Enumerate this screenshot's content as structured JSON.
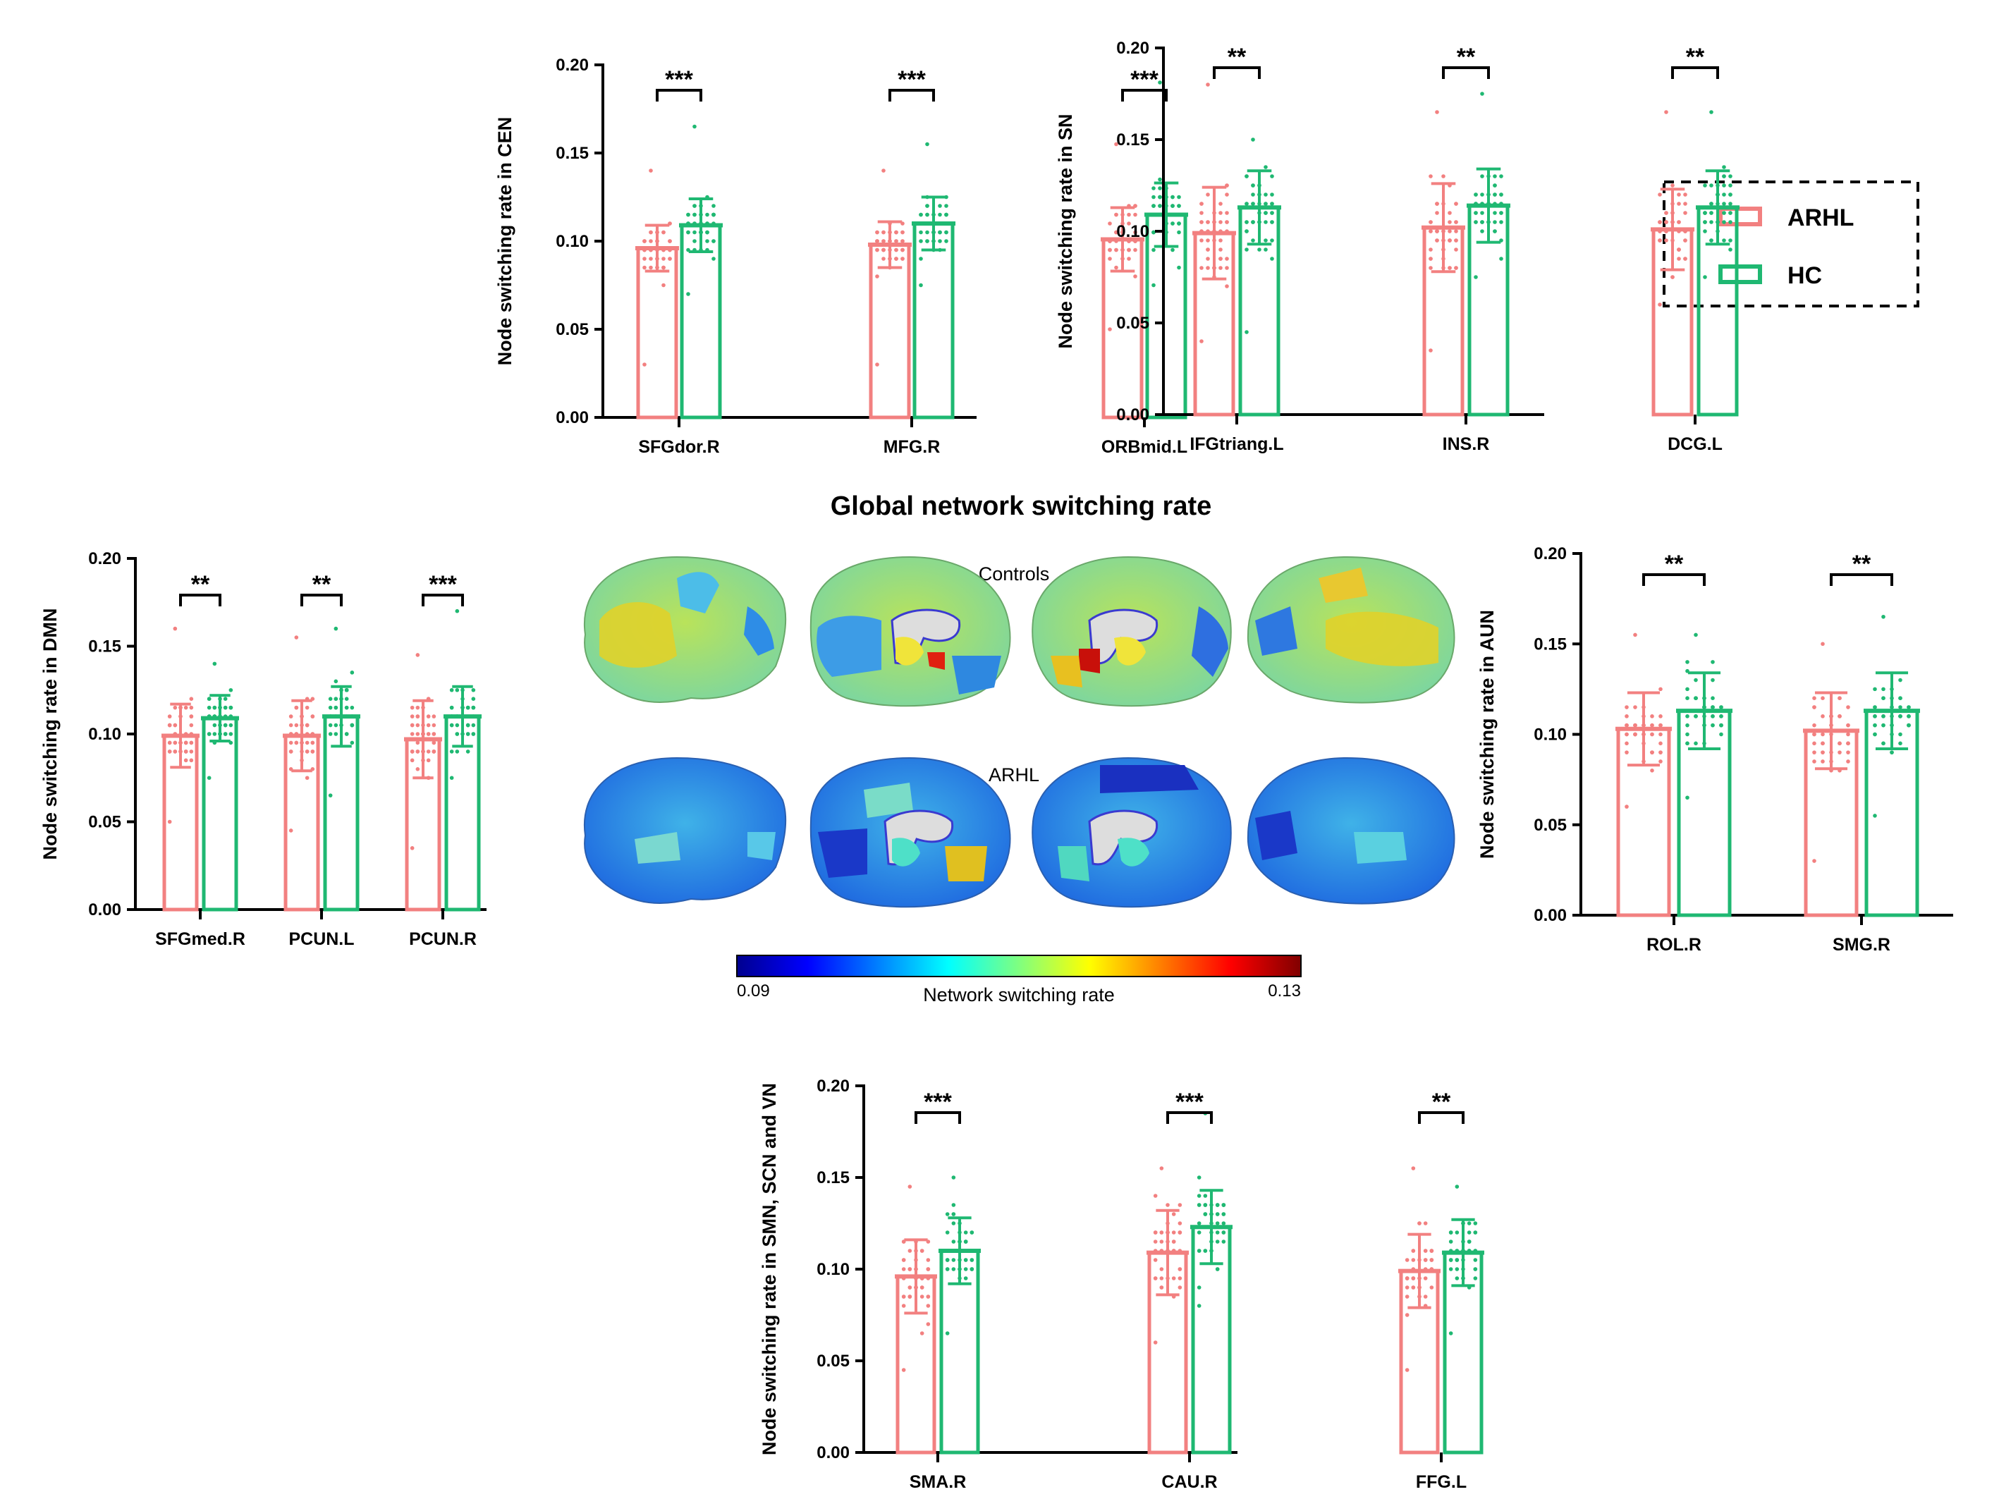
{
  "figure_title": "Global network switching rate",
  "legend": {
    "items": [
      {
        "label": "ARHL",
        "color": "#f28080"
      },
      {
        "label": "HC",
        "color": "#1fb872"
      }
    ]
  },
  "colors": {
    "arhl": "#f28080",
    "hc": "#1fb872",
    "axis": "#000000"
  },
  "brain_panel": {
    "row_labels": [
      "Controls",
      "ARHL"
    ],
    "colorbar": {
      "min_label": "0.09",
      "max_label": "0.13",
      "title": "Network switching rate",
      "range": [
        0.09,
        0.13
      ]
    }
  },
  "chart_data": [
    {
      "id": "cen",
      "type": "bar",
      "ylabel": "Node switching rate in CEN",
      "ylim": [
        0,
        0.2
      ],
      "yticks": [
        "0.00",
        "0.05",
        "0.10",
        "0.15",
        "0.20"
      ],
      "categories": [
        "SFGdor.R",
        "MFG.R",
        "ORBmid.L"
      ],
      "series": [
        {
          "name": "ARHL",
          "values": [
            0.096,
            0.098,
            0.101
          ],
          "sd": [
            0.013,
            0.013,
            0.018
          ],
          "ymin": [
            0.03,
            0.03,
            0.05
          ],
          "ymax": [
            0.14,
            0.14,
            0.155
          ]
        },
        {
          "name": "HC",
          "values": [
            0.109,
            0.11,
            0.115
          ],
          "sd": [
            0.015,
            0.015,
            0.018
          ],
          "ymin": [
            0.07,
            0.075,
            0.075
          ],
          "ymax": [
            0.165,
            0.155,
            0.19
          ]
        }
      ],
      "significance": [
        "***",
        "***",
        "***"
      ]
    },
    {
      "id": "sn",
      "type": "bar",
      "ylabel": "Node switching rate in SN",
      "ylim": [
        0,
        0.2
      ],
      "yticks": [
        "0.00",
        "0.05",
        "0.10",
        "0.15",
        "0.20"
      ],
      "categories": [
        "IFGtriang.L",
        "INS.R",
        "DCG.L"
      ],
      "series": [
        {
          "name": "ARHL",
          "values": [
            0.099,
            0.102,
            0.101
          ],
          "sd": [
            0.025,
            0.024,
            0.022
          ],
          "ymin": [
            0.04,
            0.035,
            0.06
          ],
          "ymax": [
            0.18,
            0.165,
            0.165
          ]
        },
        {
          "name": "HC",
          "values": [
            0.113,
            0.114,
            0.113
          ],
          "sd": [
            0.02,
            0.02,
            0.02
          ],
          "ymin": [
            0.045,
            0.075,
            0.075
          ],
          "ymax": [
            0.15,
            0.175,
            0.165
          ]
        }
      ],
      "significance": [
        "**",
        "**",
        "**"
      ]
    },
    {
      "id": "dmn",
      "type": "bar",
      "ylabel": "Node switching rate in DMN",
      "ylim": [
        0,
        0.2
      ],
      "yticks": [
        "0.00",
        "0.05",
        "0.10",
        "0.15",
        "0.20"
      ],
      "categories": [
        "SFGmed.R",
        "PCUN.L",
        "PCUN.R"
      ],
      "series": [
        {
          "name": "ARHL",
          "values": [
            0.099,
            0.099,
            0.097
          ],
          "sd": [
            0.018,
            0.02,
            0.022
          ],
          "ymin": [
            0.05,
            0.045,
            0.035
          ],
          "ymax": [
            0.16,
            0.155,
            0.145
          ]
        },
        {
          "name": "HC",
          "values": [
            0.109,
            0.11,
            0.11
          ],
          "sd": [
            0.013,
            0.017,
            0.017
          ],
          "ymin": [
            0.075,
            0.065,
            0.075
          ],
          "ymax": [
            0.14,
            0.16,
            0.17
          ]
        }
      ],
      "significance": [
        "**",
        "**",
        "***"
      ]
    },
    {
      "id": "aun",
      "type": "bar",
      "ylabel": "Node switching rate in AUN",
      "ylim": [
        0,
        0.2
      ],
      "yticks": [
        "0.00",
        "0.05",
        "0.10",
        "0.15",
        "0.20"
      ],
      "categories": [
        "ROL.R",
        "SMG.R"
      ],
      "series": [
        {
          "name": "ARHL",
          "values": [
            0.103,
            0.102
          ],
          "sd": [
            0.02,
            0.021
          ],
          "ymin": [
            0.06,
            0.03
          ],
          "ymax": [
            0.155,
            0.15
          ]
        },
        {
          "name": "HC",
          "values": [
            0.113,
            0.113
          ],
          "sd": [
            0.021,
            0.021
          ],
          "ymin": [
            0.065,
            0.055
          ],
          "ymax": [
            0.155,
            0.165
          ]
        }
      ],
      "significance": [
        "**",
        "**"
      ]
    },
    {
      "id": "smn",
      "type": "bar",
      "ylabel": "Node switching rate in SMN, SCN and VN",
      "ylim": [
        0,
        0.2
      ],
      "yticks": [
        "0.00",
        "0.05",
        "0.10",
        "0.15",
        "0.20"
      ],
      "categories": [
        "SMA.R",
        "CAU.R",
        "FFG.L"
      ],
      "series": [
        {
          "name": "ARHL",
          "values": [
            0.096,
            0.109,
            0.099
          ],
          "sd": [
            0.02,
            0.023,
            0.02
          ],
          "ymin": [
            0.045,
            0.06,
            0.045
          ],
          "ymax": [
            0.145,
            0.155,
            0.155
          ]
        },
        {
          "name": "HC",
          "values": [
            0.11,
            0.123,
            0.109
          ],
          "sd": [
            0.018,
            0.02,
            0.018
          ],
          "ymin": [
            0.065,
            0.08,
            0.065
          ],
          "ymax": [
            0.15,
            0.185,
            0.145
          ]
        }
      ],
      "significance": [
        "***",
        "***",
        "**"
      ]
    }
  ]
}
